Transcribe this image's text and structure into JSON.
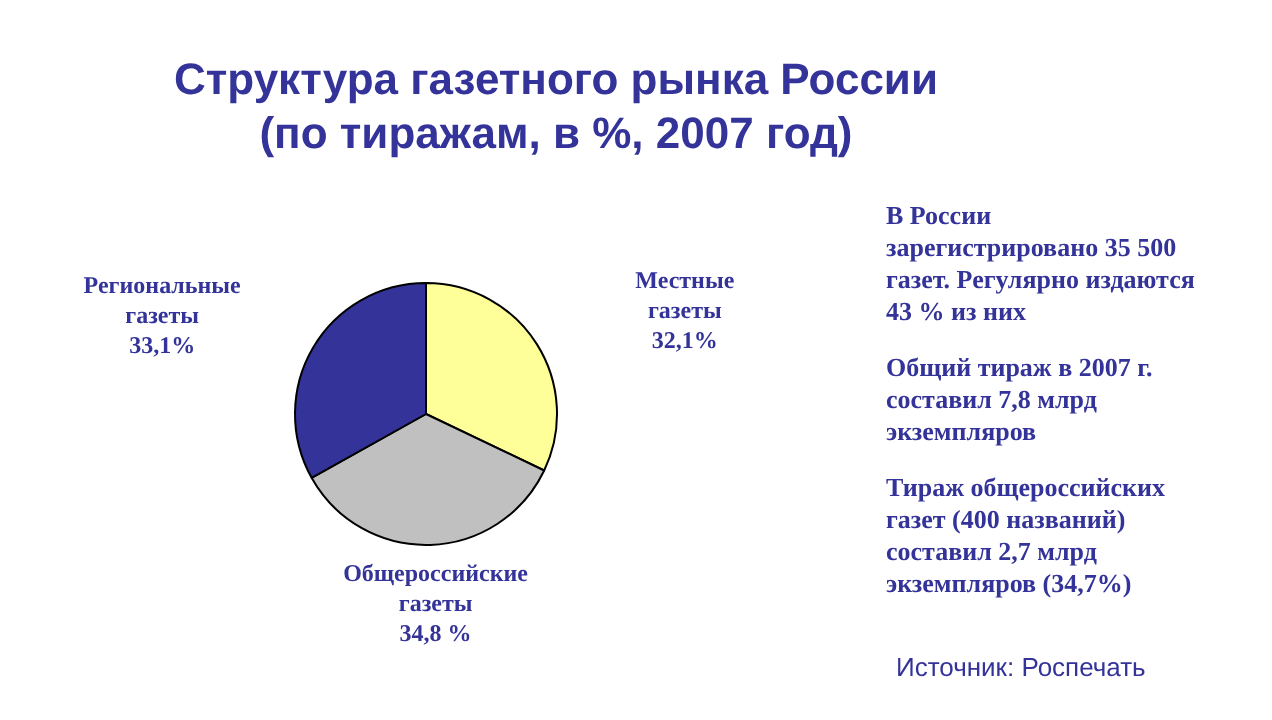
{
  "chart_data": {
    "type": "pie",
    "title": "Структура газетного рынка России",
    "subtitle": "(по тиражам, в %, 2007 год)",
    "categories": [
      "Местные газеты",
      "Общероссийские газеты",
      "Региональные газеты"
    ],
    "values": [
      32.1,
      34.8,
      33.1
    ],
    "value_labels": [
      "32,1%",
      "34,8 %",
      "33,1%"
    ],
    "colors": [
      "#ffff99",
      "#c0c0c0",
      "#333399"
    ],
    "legend": false,
    "annotations": [
      "В России зарегистрировано 35 500 газет. Регулярно издаются 43 % из них",
      "Общий тираж в 2007 г. составил 7,8 млрд экземпляров",
      "Тираж общероссийских газет (400 названий) составил 2,7 млрд экземпляров (34,7%)",
      "Источник: Роспечать"
    ]
  }
}
